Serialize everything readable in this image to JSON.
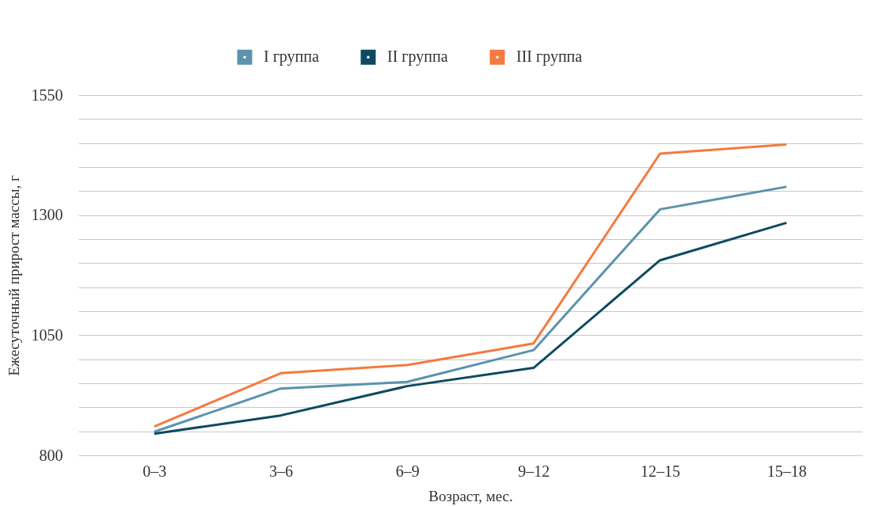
{
  "chart_data": {
    "type": "line",
    "xlabel": "Возраст, мес.",
    "ylabel": "Ежесуточный прирост массы, г",
    "categories": [
      "0–3",
      "3–6",
      "6–9",
      "9–12",
      "12–15",
      "15–18"
    ],
    "series": [
      {
        "name": "I группа",
        "color": "#5b93ad",
        "values": [
          849,
          939,
          953,
          1019,
          1312,
          1359
        ]
      },
      {
        "name": "II группа",
        "color": "#0d4a60",
        "values": [
          845,
          883,
          944,
          982,
          1206,
          1284
        ]
      },
      {
        "name": "III группа",
        "color": "#f47a3f",
        "values": [
          860,
          971,
          988,
          1033,
          1428,
          1447
        ]
      }
    ],
    "ylim": [
      800,
      1550
    ],
    "yticks": [
      800,
      {
        "value": 850,
        "label": null
      },
      {
        "value": 900,
        "label": null
      },
      {
        "value": 950,
        "label": null
      },
      {
        "value": 1000,
        "label": null
      },
      1050,
      {
        "value": 1100,
        "label": null
      },
      {
        "value": 1150,
        "label": null
      },
      {
        "value": 1200,
        "label": null
      },
      {
        "value": 1250,
        "label": null
      },
      1300,
      {
        "value": 1350,
        "label": null
      },
      {
        "value": 1400,
        "label": null
      },
      {
        "value": 1450,
        "label": null
      },
      {
        "value": 1500,
        "label": null
      },
      1550
    ],
    "grid": "y",
    "legend": "top",
    "marker": "none",
    "line_style": "solid"
  }
}
